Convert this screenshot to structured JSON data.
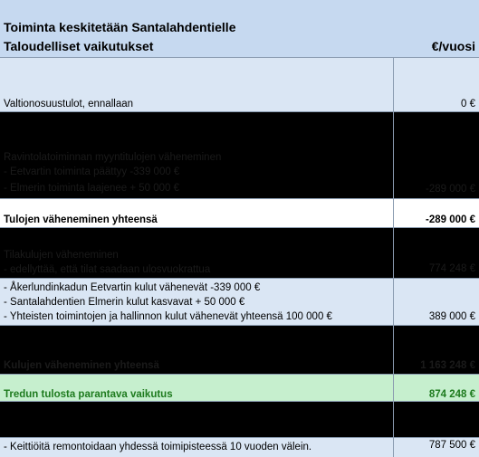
{
  "header": {
    "title": "Toiminta keskitetään Santalahdentielle",
    "subtitle": "Taloudelliset vaikutukset",
    "unit": "€/vuosi"
  },
  "rows": {
    "valtionosuus": {
      "label": "Valtionosuustulot, ennallaan",
      "value": "0 €"
    },
    "myyntitulot": {
      "label": "Ravintolatoiminnan myyntitulojen väheneminen",
      "line1": "- Eetvartin toiminta päättyy -339 000 €",
      "line2": "- Elmerin toiminta laajenee + 50 000 €",
      "value": "-289 000 €"
    },
    "tulot_yht": {
      "label": "Tulojen väheneminen yhteensä",
      "value": "-289 000 €"
    },
    "tilakulut": {
      "label": "Tilakulujen väheneminen",
      "line1": "- edellyttää, että tilat saadaan ulosvuokrattua",
      "value": "774 248 €"
    },
    "kulut_list": {
      "line1": "- Åkerlundinkadun Eetvartin kulut vähenevät -339 000 €",
      "line2": "- Santalahdentien Elmerin kulut kasvavat + 50 000 €",
      "line3": "- Yhteisten toimintojen ja hallinnon kulut vähenevät yhteensä 100 000 €",
      "value": "389 000 €"
    },
    "kulut_yht": {
      "label": "Kulujen väheneminen yhteensä",
      "value": "1 163 248 €"
    },
    "vaikutus": {
      "label": "Tredun tulosta parantava vaikutus",
      "value": "874 248 €"
    },
    "keittiot": {
      "label": "- Keittiöitä remontoidaan yhdessä toimipisteessä 10 vuoden välein.",
      "value": "787 500 €"
    }
  },
  "colors": {
    "header_bg": "#c6d9f0",
    "light_row": "#dae6f4",
    "dark_row": "#000000",
    "green_row": "#c6efce",
    "green_text": "#1e7b1e"
  }
}
